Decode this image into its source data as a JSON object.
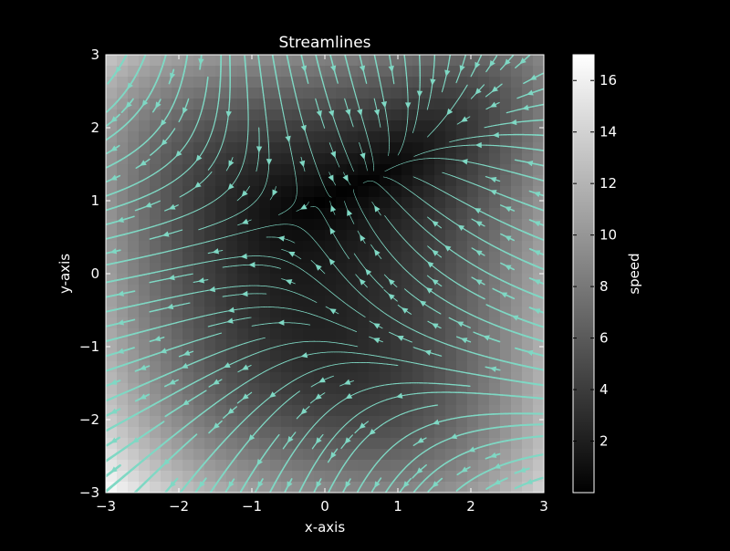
{
  "chart_data": {
    "type": "streamplot",
    "title": "Streamlines",
    "xlabel": "x-axis",
    "ylabel": "y-axis",
    "xlim": [
      -3,
      3
    ],
    "ylim": [
      -3,
      3
    ],
    "x_ticks": [
      -3,
      -2,
      -1,
      0,
      1,
      2,
      3
    ],
    "y_ticks": [
      -3,
      -2,
      -1,
      0,
      1,
      2,
      3
    ],
    "x_tick_labels": [
      "−3",
      "−2",
      "−1",
      "0",
      "1",
      "2",
      "3"
    ],
    "y_tick_labels": [
      "−3",
      "−2",
      "−1",
      "0",
      "1",
      "2",
      "3"
    ],
    "grid": false,
    "stream_color": "#7fd8c4",
    "background_colormap": "gray",
    "colorbar": {
      "label": "speed",
      "range": [
        0,
        17
      ],
      "ticks": [
        2,
        4,
        6,
        8,
        10,
        12,
        14,
        16
      ],
      "tick_labels": [
        "2",
        "4",
        "6",
        "8",
        "10",
        "12",
        "14",
        "16"
      ]
    }
  }
}
